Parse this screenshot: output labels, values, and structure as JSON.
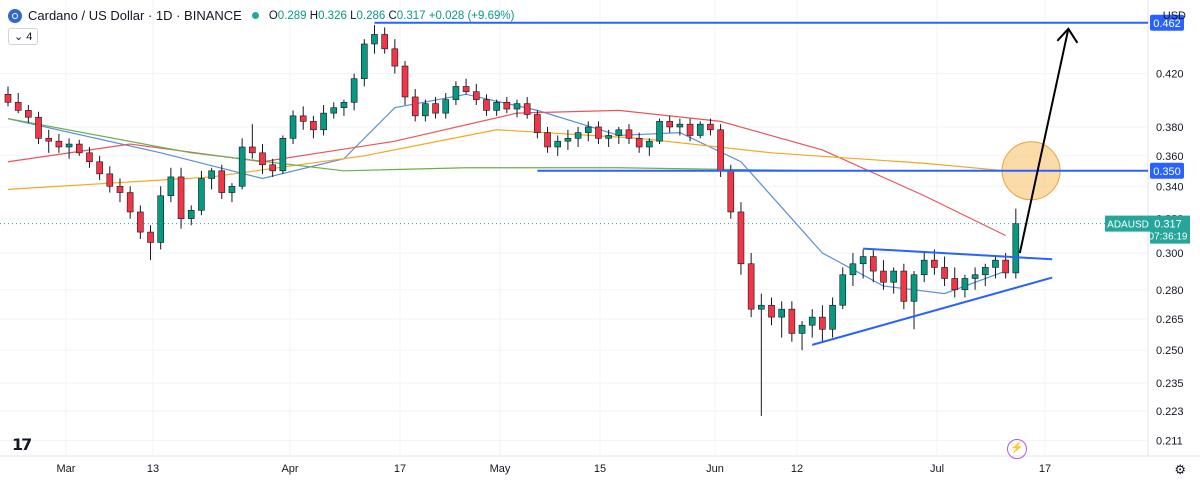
{
  "header": {
    "symbol": "Cardano / US Dollar · 1D · BINANCE",
    "ohlc": {
      "o_label": "O",
      "o": "0.289",
      "h_label": "H",
      "h": "0.326",
      "l_label": "L",
      "l": "0.286",
      "c_label": "C",
      "c": "0.317",
      "change": "+0.028 (+9.69%)"
    },
    "indicator_label": "4",
    "currency": "USD"
  },
  "colors": {
    "up": "#089981",
    "down": "#f23645",
    "trendline": "#2962ff",
    "annotation": "#000000",
    "ma_short": "#5b8fd9",
    "ma_red": "#e8565c",
    "ma_orange": "#f5a623",
    "ma_green": "#6ab04c",
    "circle_fill": "#f9c97a",
    "current_price_line": "#26a69a"
  },
  "chart_data": {
    "type": "candlestick",
    "title": "Cardano / US Dollar · 1D · BINANCE",
    "ylim": [
      0.205,
      0.475
    ],
    "y_ticks": [
      "0.211",
      "0.223",
      "0.235",
      "0.250",
      "0.265",
      "0.280",
      "0.300",
      "0.320",
      "0.340",
      "0.360",
      "0.380",
      "0.420"
    ],
    "x_ticks": [
      "Mar",
      "13",
      "Apr",
      "17",
      "May",
      "15",
      "Jun",
      "12",
      "Jul",
      "17"
    ],
    "grid": true,
    "candles": [
      [
        0.404,
        0.41,
        0.395,
        0.398
      ],
      [
        0.398,
        0.405,
        0.39,
        0.392
      ],
      [
        0.392,
        0.396,
        0.383,
        0.387
      ],
      [
        0.387,
        0.391,
        0.368,
        0.372
      ],
      [
        0.372,
        0.378,
        0.362,
        0.37
      ],
      [
        0.37,
        0.375,
        0.362,
        0.366
      ],
      [
        0.366,
        0.372,
        0.358,
        0.368
      ],
      [
        0.368,
        0.371,
        0.36,
        0.362
      ],
      [
        0.362,
        0.366,
        0.352,
        0.356
      ],
      [
        0.356,
        0.36,
        0.344,
        0.348
      ],
      [
        0.348,
        0.353,
        0.336,
        0.34
      ],
      [
        0.34,
        0.345,
        0.33,
        0.336
      ],
      [
        0.336,
        0.34,
        0.32,
        0.324
      ],
      [
        0.324,
        0.328,
        0.308,
        0.312
      ],
      [
        0.312,
        0.316,
        0.296,
        0.306
      ],
      [
        0.306,
        0.34,
        0.302,
        0.334
      ],
      [
        0.334,
        0.352,
        0.33,
        0.346
      ],
      [
        0.346,
        0.352,
        0.314,
        0.32
      ],
      [
        0.32,
        0.328,
        0.316,
        0.325
      ],
      [
        0.325,
        0.35,
        0.322,
        0.345
      ],
      [
        0.345,
        0.352,
        0.338,
        0.35
      ],
      [
        0.35,
        0.354,
        0.332,
        0.336
      ],
      [
        0.336,
        0.342,
        0.33,
        0.34
      ],
      [
        0.34,
        0.372,
        0.338,
        0.366
      ],
      [
        0.366,
        0.382,
        0.358,
        0.362
      ],
      [
        0.362,
        0.368,
        0.348,
        0.354
      ],
      [
        0.354,
        0.358,
        0.346,
        0.35
      ],
      [
        0.35,
        0.374,
        0.348,
        0.372
      ],
      [
        0.372,
        0.392,
        0.368,
        0.388
      ],
      [
        0.388,
        0.395,
        0.378,
        0.384
      ],
      [
        0.384,
        0.388,
        0.372,
        0.378
      ],
      [
        0.378,
        0.396,
        0.374,
        0.39
      ],
      [
        0.39,
        0.398,
        0.386,
        0.394
      ],
      [
        0.394,
        0.4,
        0.388,
        0.398
      ],
      [
        0.398,
        0.42,
        0.392,
        0.416
      ],
      [
        0.416,
        0.448,
        0.41,
        0.444
      ],
      [
        0.444,
        0.46,
        0.436,
        0.452
      ],
      [
        0.452,
        0.458,
        0.436,
        0.44
      ],
      [
        0.44,
        0.448,
        0.42,
        0.426
      ],
      [
        0.426,
        0.43,
        0.396,
        0.402
      ],
      [
        0.402,
        0.408,
        0.384,
        0.388
      ],
      [
        0.388,
        0.4,
        0.384,
        0.397
      ],
      [
        0.397,
        0.402,
        0.386,
        0.39
      ],
      [
        0.39,
        0.405,
        0.386,
        0.4
      ],
      [
        0.4,
        0.414,
        0.396,
        0.41
      ],
      [
        0.41,
        0.416,
        0.404,
        0.406
      ],
      [
        0.406,
        0.412,
        0.396,
        0.4
      ],
      [
        0.4,
        0.404,
        0.388,
        0.392
      ],
      [
        0.392,
        0.4,
        0.388,
        0.398
      ],
      [
        0.398,
        0.402,
        0.39,
        0.393
      ],
      [
        0.393,
        0.4,
        0.387,
        0.397
      ],
      [
        0.397,
        0.402,
        0.386,
        0.389
      ],
      [
        0.389,
        0.392,
        0.372,
        0.376
      ],
      [
        0.376,
        0.38,
        0.362,
        0.366
      ],
      [
        0.366,
        0.374,
        0.36,
        0.37
      ],
      [
        0.37,
        0.378,
        0.364,
        0.372
      ],
      [
        0.372,
        0.38,
        0.366,
        0.376
      ],
      [
        0.376,
        0.384,
        0.37,
        0.38
      ],
      [
        0.38,
        0.384,
        0.368,
        0.372
      ],
      [
        0.372,
        0.378,
        0.366,
        0.374
      ],
      [
        0.374,
        0.38,
        0.368,
        0.378
      ],
      [
        0.378,
        0.382,
        0.368,
        0.372
      ],
      [
        0.372,
        0.376,
        0.362,
        0.366
      ],
      [
        0.366,
        0.372,
        0.36,
        0.37
      ],
      [
        0.37,
        0.386,
        0.368,
        0.384
      ],
      [
        0.384,
        0.388,
        0.376,
        0.38
      ],
      [
        0.38,
        0.386,
        0.374,
        0.382
      ],
      [
        0.382,
        0.386,
        0.37,
        0.374
      ],
      [
        0.374,
        0.384,
        0.372,
        0.382
      ],
      [
        0.382,
        0.386,
        0.374,
        0.378
      ],
      [
        0.378,
        0.382,
        0.346,
        0.35
      ],
      [
        0.35,
        0.354,
        0.32,
        0.324
      ],
      [
        0.324,
        0.33,
        0.288,
        0.294
      ],
      [
        0.294,
        0.3,
        0.266,
        0.27
      ],
      [
        0.27,
        0.278,
        0.221,
        0.272
      ],
      [
        0.272,
        0.276,
        0.262,
        0.266
      ],
      [
        0.266,
        0.274,
        0.256,
        0.27
      ],
      [
        0.27,
        0.274,
        0.254,
        0.258
      ],
      [
        0.258,
        0.264,
        0.25,
        0.262
      ],
      [
        0.262,
        0.27,
        0.256,
        0.266
      ],
      [
        0.266,
        0.272,
        0.254,
        0.26
      ],
      [
        0.26,
        0.276,
        0.256,
        0.272
      ],
      [
        0.272,
        0.292,
        0.27,
        0.288
      ],
      [
        0.288,
        0.3,
        0.282,
        0.294
      ],
      [
        0.294,
        0.302,
        0.286,
        0.298
      ],
      [
        0.298,
        0.302,
        0.284,
        0.29
      ],
      [
        0.29,
        0.296,
        0.28,
        0.284
      ],
      [
        0.284,
        0.292,
        0.278,
        0.29
      ],
      [
        0.29,
        0.294,
        0.27,
        0.274
      ],
      [
        0.274,
        0.29,
        0.26,
        0.288
      ],
      [
        0.288,
        0.3,
        0.284,
        0.296
      ],
      [
        0.296,
        0.302,
        0.288,
        0.292
      ],
      [
        0.292,
        0.298,
        0.282,
        0.286
      ],
      [
        0.286,
        0.292,
        0.276,
        0.28
      ],
      [
        0.28,
        0.288,
        0.276,
        0.286
      ],
      [
        0.286,
        0.292,
        0.28,
        0.288
      ],
      [
        0.288,
        0.294,
        0.282,
        0.292
      ],
      [
        0.292,
        0.298,
        0.286,
        0.296
      ],
      [
        0.296,
        0.3,
        0.286,
        0.289
      ],
      [
        0.289,
        0.326,
        0.286,
        0.317
      ]
    ],
    "moving_averages": [
      {
        "color_key": "ma_short",
        "values": [
          [
            0,
            0.386
          ],
          [
            15,
            0.362
          ],
          [
            25,
            0.345
          ],
          [
            33,
            0.358
          ],
          [
            38,
            0.394
          ],
          [
            45,
            0.404
          ],
          [
            52,
            0.392
          ],
          [
            60,
            0.374
          ],
          [
            66,
            0.376
          ],
          [
            72,
            0.356
          ],
          [
            80,
            0.3
          ],
          [
            86,
            0.282
          ],
          [
            92,
            0.278
          ],
          [
            98,
            0.29
          ]
        ]
      },
      {
        "color_key": "ma_red",
        "values": [
          [
            0,
            0.356
          ],
          [
            12,
            0.368
          ],
          [
            25,
            0.356
          ],
          [
            38,
            0.37
          ],
          [
            50,
            0.39
          ],
          [
            60,
            0.392
          ],
          [
            70,
            0.384
          ],
          [
            80,
            0.364
          ],
          [
            90,
            0.334
          ],
          [
            98,
            0.31
          ]
        ]
      },
      {
        "color_key": "ma_orange",
        "values": [
          [
            0,
            0.338
          ],
          [
            20,
            0.346
          ],
          [
            35,
            0.36
          ],
          [
            48,
            0.378
          ],
          [
            62,
            0.372
          ],
          [
            75,
            0.362
          ],
          [
            90,
            0.355
          ],
          [
            98,
            0.35
          ]
        ]
      },
      {
        "color_key": "ma_green",
        "values": [
          [
            0,
            0.386
          ],
          [
            18,
            0.362
          ],
          [
            33,
            0.35
          ],
          [
            45,
            0.352
          ],
          [
            60,
            0.352
          ],
          [
            80,
            0.35
          ],
          [
            98,
            0.35
          ]
        ]
      }
    ],
    "levels": [
      {
        "label": "0.462",
        "value": 0.462,
        "from": 36
      },
      {
        "label": "0.350",
        "value": 0.35,
        "from": 52
      }
    ],
    "current_price": {
      "symbol": "ADAUSD",
      "value": "0.317",
      "countdown": "07:36:19"
    },
    "triangle": {
      "upper": [
        [
          84,
          0.3025
        ],
        [
          101,
          0.2965
        ]
      ],
      "lower": [
        [
          79,
          0.2525
        ],
        [
          101,
          0.2865
        ]
      ]
    },
    "projection": {
      "from": [
        99,
        0.3
      ],
      "to": [
        102,
        0.462
      ]
    },
    "circle": {
      "at": [
        100.5,
        0.35
      ]
    }
  }
}
